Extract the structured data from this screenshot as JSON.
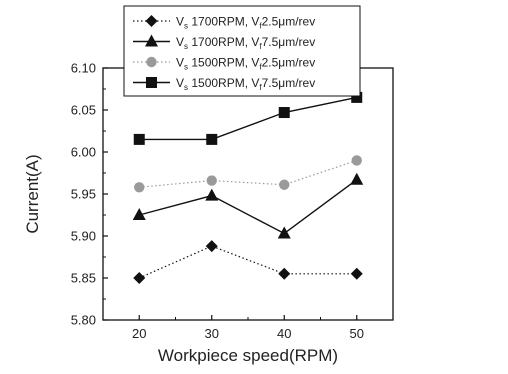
{
  "chart_data": {
    "type": "line",
    "x": [
      20,
      30,
      40,
      50
    ],
    "xlabel": "Workpiece speed(RPM)",
    "ylabel": "Current(A)",
    "xlim": [
      15,
      55
    ],
    "ylim": [
      5.8,
      6.1
    ],
    "xticks": [
      "20",
      "30",
      "40",
      "50"
    ],
    "yticks": [
      "5.80",
      "5.85",
      "5.90",
      "5.95",
      "6.00",
      "6.05",
      "6.10"
    ],
    "grid": false,
    "legend_position": "top-center, above plot",
    "series": [
      {
        "name": "V_s 1700RPM, V_f 2.5μm/rev",
        "legend": {
          "pre": "V",
          "sub1": "s",
          "mid": " 1700RPM, V",
          "sub2": "f",
          "post": "2.5μm/rev"
        },
        "values": [
          5.85,
          5.888,
          5.855,
          5.855
        ],
        "marker": "diamond",
        "line": "dotted",
        "color": "#111111"
      },
      {
        "name": "V_s 1700RPM, V_f 7.5μm/rev",
        "legend": {
          "pre": "V",
          "sub1": "s",
          "mid": " 1700RPM, V",
          "sub2": "f",
          "post": "7.5μm/rev"
        },
        "values": [
          5.925,
          5.948,
          5.903,
          5.967
        ],
        "marker": "triangle",
        "line": "solid",
        "color": "#111111"
      },
      {
        "name": "V_s 1500RPM, V_f 2.5μm/rev",
        "legend": {
          "pre": "V",
          "sub1": "s",
          "mid": " 1500RPM, V",
          "sub2": "f",
          "post": "2.5μm/rev"
        },
        "values": [
          5.958,
          5.966,
          5.961,
          5.99
        ],
        "marker": "circle",
        "line": "dotted",
        "color": "#9a9a9a"
      },
      {
        "name": "V_s 1500RPM, V_f 7.5μm/rev",
        "legend": {
          "pre": "V",
          "sub1": "s",
          "mid": " 1500RPM, V",
          "sub2": "f",
          "post": "7.5μm/rev"
        },
        "values": [
          6.015,
          6.015,
          6.047,
          6.065
        ],
        "marker": "square",
        "line": "solid",
        "color": "#111111"
      }
    ]
  }
}
